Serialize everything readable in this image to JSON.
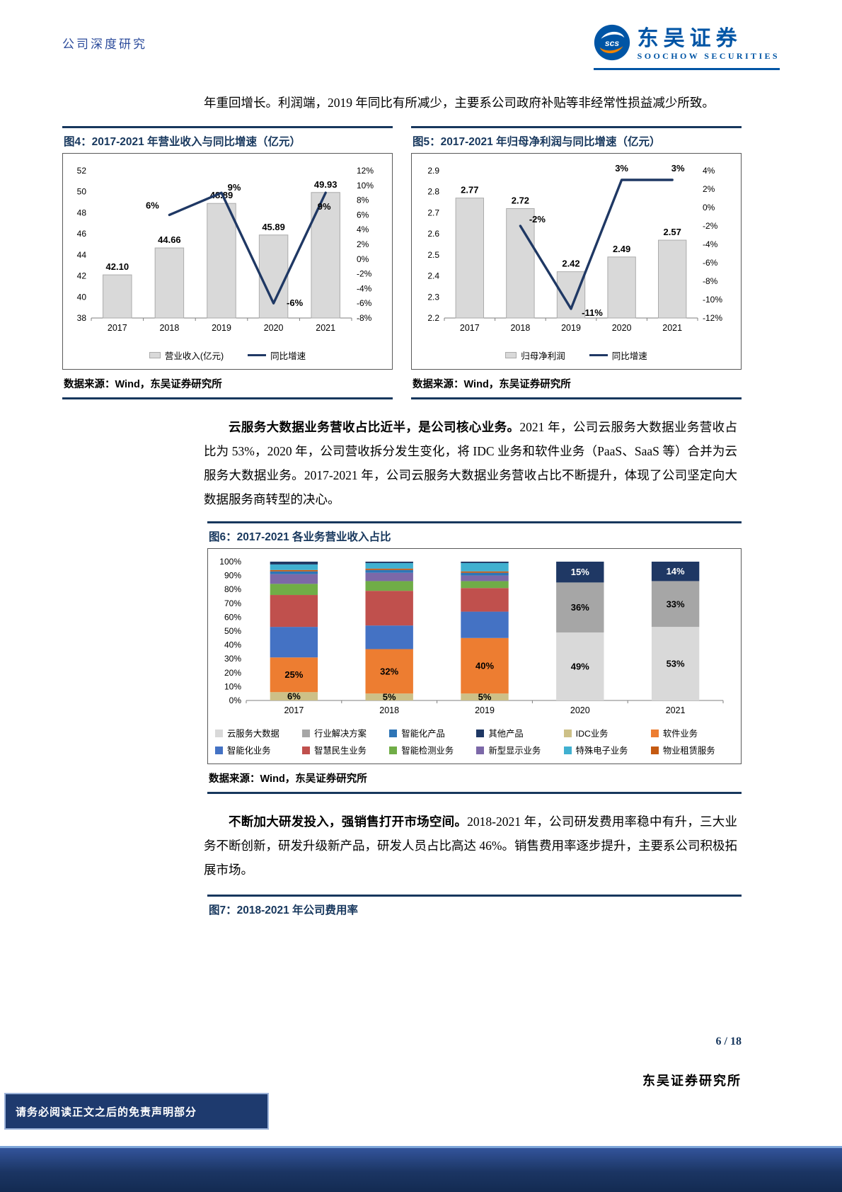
{
  "header": {
    "section": "公司深度研究",
    "logo_cn": "东吴证券",
    "logo_en": "SOOCHOW SECURITIES",
    "logo_mark": "scs"
  },
  "body": {
    "p1": "年重回增长。利润端，2019 年同比有所减少，主要系公司政府补贴等非经常性损益减少所致。",
    "p2_lead": "云服务大数据业务营收占比近半，是公司核心业务。",
    "p2_rest": "2021 年，公司云服务大数据业务营收占比为 53%，2020 年，公司营收拆分发生变化，将 IDC 业务和软件业务（PaaS、SaaS 等）合并为云服务大数据业务。2017-2021 年，公司云服务大数据业务营收占比不断提升，体现了公司坚定向大数据服务商转型的决心。",
    "p3_lead": "不断加大研发投入，强销售打开市场空间。",
    "p3_rest": "2018-2021 年，公司研发费用率稳中有升，三大业务不断创新，研发升级新产品，研发人员占比高达 46%。销售费用率逐步提升，主要系公司积极拓展市场。"
  },
  "figures": {
    "fig4": {
      "title": "图4：2017-2021 年营业收入与同比增速（亿元）",
      "source": "数据来源：Wind，东吴证券研究所"
    },
    "fig5": {
      "title": "图5：2017-2021 年归母净利润与同比增速（亿元）",
      "source": "数据来源：Wind，东吴证券研究所"
    },
    "fig6": {
      "title": "图6：2017-2021 各业务营业收入占比",
      "source": "数据来源：Wind，东吴证券研究所"
    },
    "fig7": {
      "title": "图7：2018-2021 年公司费用率"
    }
  },
  "footer": {
    "page_info": "6 / 18",
    "institute": "东吴证券研究所",
    "disclaimer": "请务必阅读正文之后的免责声明部分"
  },
  "chart_data": [
    {
      "id": "fig4",
      "type": "bar+line",
      "title": "2017-2021 年营业收入与同比增速（亿元）",
      "categories": [
        "2017",
        "2018",
        "2019",
        "2020",
        "2021"
      ],
      "bar_series": {
        "name": "营业收入(亿元)",
        "color": "#D9D9D9",
        "values": [
          42.1,
          44.66,
          48.89,
          45.89,
          49.93
        ],
        "labels": [
          "42.10",
          "44.66",
          "48.89",
          "45.89",
          "49.93"
        ]
      },
      "line_series": {
        "name": "同比增速",
        "color": "#1F3864",
        "values": [
          null,
          6,
          9,
          -6,
          9
        ],
        "labels": [
          null,
          "6%",
          "9%",
          "-6%",
          "9%"
        ]
      },
      "left_axis": {
        "min": 38,
        "max": 52,
        "step": 2
      },
      "right_axis": {
        "min": -8,
        "max": 12,
        "step": 2,
        "suffix": "%"
      }
    },
    {
      "id": "fig5",
      "type": "bar+line",
      "title": "2017-2021 年归母净利润与同比增速（亿元）",
      "categories": [
        "2017",
        "2018",
        "2019",
        "2020",
        "2021"
      ],
      "bar_series": {
        "name": "归母净利润",
        "color": "#D9D9D9",
        "values": [
          2.77,
          2.72,
          2.42,
          2.49,
          2.57
        ],
        "labels": [
          "2.77",
          "2.72",
          "2.42",
          "2.49",
          "2.57"
        ]
      },
      "line_series": {
        "name": "同比增速",
        "color": "#1F3864",
        "values": [
          null,
          -2,
          -11,
          3,
          3
        ],
        "labels": [
          null,
          "-2%",
          "-11%",
          "3%",
          "3%"
        ]
      },
      "left_axis": {
        "min": 2.2,
        "max": 2.9,
        "step": 0.1
      },
      "right_axis": {
        "min": -12,
        "max": 4,
        "step": 2,
        "suffix": "%"
      }
    },
    {
      "id": "fig6",
      "type": "stacked-bar-100",
      "title": "2017-2021 各业务营业收入占比",
      "categories": [
        "2017",
        "2018",
        "2019",
        "2020",
        "2021"
      ],
      "y_axis": {
        "min": 0,
        "max": 100,
        "step": 10,
        "suffix": "%"
      },
      "series": [
        {
          "name": "云服务大数据",
          "color": "#D9D9D9",
          "values": [
            0,
            0,
            0,
            49,
            53
          ],
          "labeled": true
        },
        {
          "name": "行业解决方案",
          "color": "#A6A6A6",
          "values": [
            0,
            0,
            0,
            36,
            33
          ],
          "labeled": true
        },
        {
          "name": "IDC业务",
          "color": "#CDC087",
          "values": [
            6,
            5,
            5,
            0,
            0
          ],
          "labeled": true
        },
        {
          "name": "软件业务",
          "color": "#ED7D31",
          "values": [
            25,
            32,
            40,
            0,
            0
          ],
          "labeled": true
        },
        {
          "name": "智能化业务",
          "color": "#4472C4",
          "values": [
            22,
            17,
            19,
            0,
            0
          ],
          "labeled": false
        },
        {
          "name": "智慧民生业务",
          "color": "#C0504D",
          "values": [
            23,
            25,
            17,
            0,
            0
          ],
          "labeled": false
        },
        {
          "name": "智能检测业务",
          "color": "#70AD47",
          "values": [
            8,
            7,
            5,
            0,
            0
          ],
          "labeled": false
        },
        {
          "name": "新型显示业务",
          "color": "#7C68A8",
          "values": [
            7,
            6,
            4,
            0,
            0
          ],
          "labeled": false
        },
        {
          "name": "智能化产品",
          "color": "#2E75B6",
          "values": [
            2,
            2,
            2,
            0,
            0
          ],
          "labeled": false
        },
        {
          "name": "物业租赁服务",
          "color": "#C55A11",
          "values": [
            1,
            1,
            1,
            0,
            0
          ],
          "labeled": false
        },
        {
          "name": "特殊电子业务",
          "color": "#40B0D0",
          "values": [
            4,
            4,
            6,
            0,
            0
          ],
          "labeled": false
        },
        {
          "name": "其他产品",
          "color": "#1F3864",
          "values": [
            2,
            1,
            1,
            15,
            14
          ],
          "labeled": true,
          "label_min": 10,
          "label_color": "#FFFFFF"
        }
      ],
      "legend_order": [
        "云服务大数据",
        "行业解决方案",
        "智能化产品",
        "其他产品",
        "IDC业务",
        "软件业务",
        "智能化业务",
        "智慧民生业务",
        "智能检测业务",
        "新型显示业务",
        "特殊电子业务",
        "物业租赁服务"
      ]
    }
  ]
}
